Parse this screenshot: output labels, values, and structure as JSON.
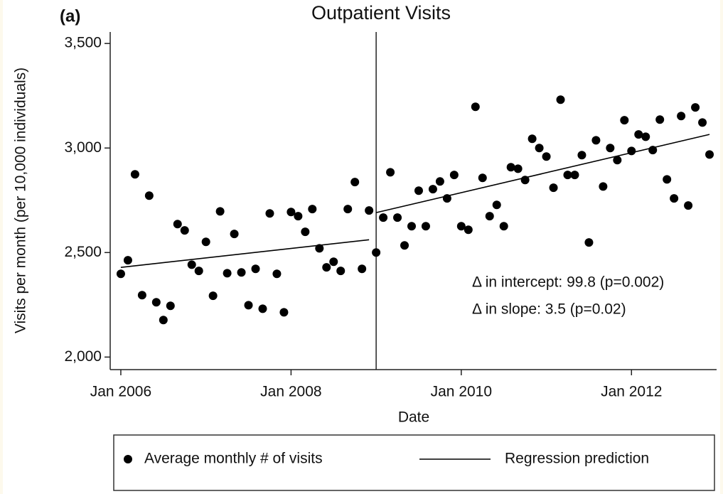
{
  "chart_data": {
    "type": "scatter",
    "panel_label": "(a)",
    "title": "Outpatient Visits",
    "xlabel": "Date",
    "ylabel": "Visits per month (per 10,000 individuals)",
    "xlim": [
      "2005-11",
      "2013-01"
    ],
    "ylim": [
      1940,
      3555
    ],
    "xticks": [
      {
        "value": "2006-01",
        "label": "Jan 2006"
      },
      {
        "value": "2008-01",
        "label": "Jan 2008"
      },
      {
        "value": "2010-01",
        "label": "Jan 2010"
      },
      {
        "value": "2012-01",
        "label": "Jan 2012"
      }
    ],
    "yticks": [
      {
        "value": 2000,
        "label": "2,000"
      },
      {
        "value": 2500,
        "label": "2,500"
      },
      {
        "value": 3000,
        "label": "3,000"
      },
      {
        "value": 3500,
        "label": "3,500"
      }
    ],
    "intervention": "2009-01",
    "series": [
      {
        "name": "Average monthly # of visits",
        "color": "#000000",
        "kind": "points",
        "x": [
          "2006-01",
          "2006-02",
          "2006-03",
          "2006-04",
          "2006-05",
          "2006-06",
          "2006-07",
          "2006-08",
          "2006-09",
          "2006-10",
          "2006-11",
          "2006-12",
          "2007-01",
          "2007-02",
          "2007-03",
          "2007-04",
          "2007-05",
          "2007-06",
          "2007-07",
          "2007-08",
          "2007-09",
          "2007-10",
          "2007-11",
          "2007-12",
          "2008-01",
          "2008-02",
          "2008-03",
          "2008-04",
          "2008-05",
          "2008-06",
          "2008-07",
          "2008-08",
          "2008-09",
          "2008-10",
          "2008-11",
          "2008-12",
          "2009-01",
          "2009-02",
          "2009-03",
          "2009-04",
          "2009-05",
          "2009-06",
          "2009-07",
          "2009-08",
          "2009-09",
          "2009-10",
          "2009-11",
          "2009-12",
          "2010-01",
          "2010-02",
          "2010-03",
          "2010-04",
          "2010-05",
          "2010-06",
          "2010-07",
          "2010-08",
          "2010-09",
          "2010-10",
          "2010-11",
          "2010-12",
          "2011-01",
          "2011-02",
          "2011-03",
          "2011-04",
          "2011-05",
          "2011-06",
          "2011-07",
          "2011-08",
          "2011-09",
          "2011-10",
          "2011-11",
          "2011-12",
          "2012-01",
          "2012-02",
          "2012-03",
          "2012-04",
          "2012-05",
          "2012-06",
          "2012-07",
          "2012-08",
          "2012-09",
          "2012-10",
          "2012-11",
          "2012-12"
        ],
        "values": [
          2398,
          2463,
          2874,
          2296,
          2772,
          2262,
          2177,
          2245,
          2636,
          2606,
          2442,
          2412,
          2551,
          2293,
          2697,
          2401,
          2589,
          2405,
          2248,
          2422,
          2231,
          2687,
          2398,
          2214,
          2694,
          2674,
          2599,
          2708,
          2520,
          2429,
          2456,
          2412,
          2708,
          2837,
          2422,
          2701,
          2500,
          2667,
          2884,
          2667,
          2534,
          2626,
          2796,
          2626,
          2803,
          2840,
          2759,
          2871,
          2626,
          2609,
          3197,
          2857,
          2674,
          2728,
          2626,
          2908,
          2901,
          2847,
          3044,
          3000,
          2959,
          2810,
          3231,
          2871,
          2871,
          2966,
          2548,
          3037,
          2816,
          3000,
          2942,
          3133,
          2986,
          3065,
          3054,
          2990,
          3136,
          2850,
          2759,
          3153,
          2725,
          3194,
          3122,
          2969
        ]
      },
      {
        "name": "Regression prediction",
        "color": "#000000",
        "kind": "line",
        "x": [
          "2006-01",
          "2008-12",
          "2008-12",
          "2009-01",
          "2012-12"
        ],
        "values": [
          2429,
          2561,
          null,
          2691,
          3065
        ]
      }
    ],
    "annotations": [
      "Δ in intercept: 99.8 (p=0.002)",
      "Δ in slope: 3.5 (p=0.02)"
    ]
  }
}
